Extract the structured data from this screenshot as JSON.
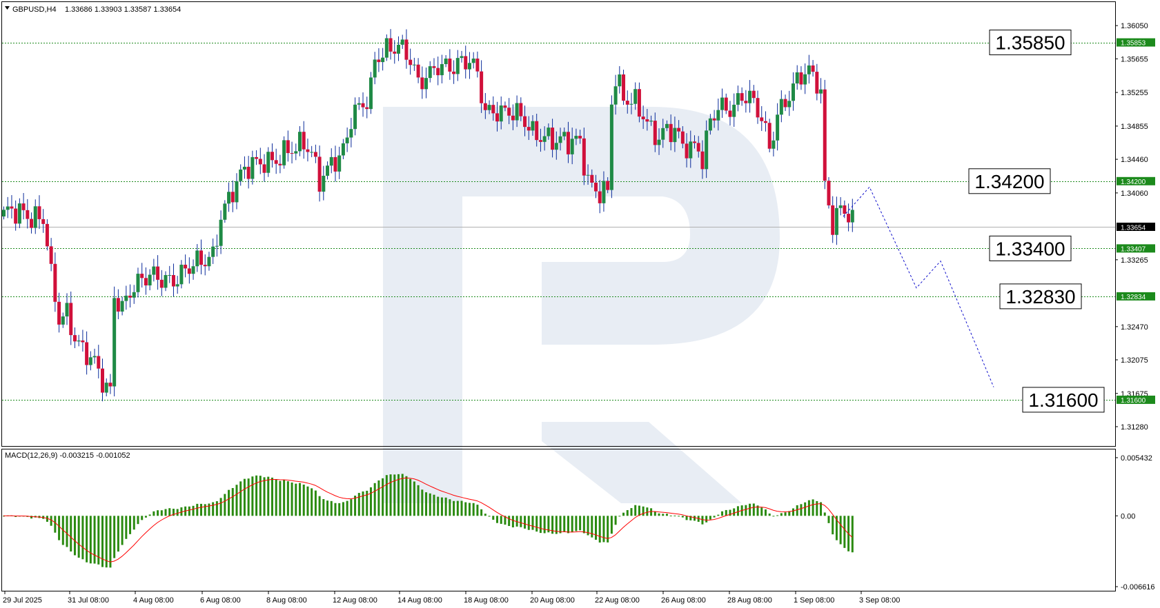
{
  "header": {
    "symbol": "GBPUSD,H4",
    "ohlc": "1.33686 1.33903 1.33587 1.33654"
  },
  "macd": {
    "label": "MACD(12,26,9) -0.003215 -0.001052",
    "ticks": [
      {
        "value": 0.005432,
        "label": "0.005432"
      },
      {
        "value": 0.0,
        "label": "0.00"
      },
      {
        "value": -0.006616,
        "label": "-0.006616"
      }
    ]
  },
  "colors": {
    "bull": "#1f8a45",
    "bear": "#d0103a",
    "level": "#1c8a1c",
    "signal": "#ff0000",
    "histogram": "#2a8a10",
    "forecast": "#1010cc",
    "current": "#b0b0b0",
    "watermark": "#e8edf4"
  },
  "chart_data": {
    "type": "candlestick",
    "ylim": [
      1.3105,
      1.3633
    ],
    "price_ticks": [
      1.3605,
      1.35655,
      1.35255,
      1.34855,
      1.3446,
      1.3406,
      1.33265,
      1.3247,
      1.32075,
      1.31675,
      1.3128
    ],
    "price_tick_labels": [
      "1.36050",
      "1.35655",
      "1.35255",
      "1.34855",
      "1.34460",
      "1.34060",
      "1.33265",
      "1.32470",
      "1.32075",
      "1.31675",
      "1.31280"
    ],
    "x_labels": [
      "29 Jul 2025",
      "31 Jul 08:00",
      "4 Aug 08:00",
      "6 Aug 08:00",
      "8 Aug 08:00",
      "12 Aug 08:00",
      "14 Aug 08:00",
      "18 Aug 08:00",
      "20 Aug 08:00",
      "22 Aug 08:00",
      "26 Aug 08:00",
      "28 Aug 08:00",
      "1 Sep 08:00",
      "3 Sep 08:00"
    ],
    "current_price": {
      "value": 1.33654,
      "label": "1.33654"
    },
    "levels": [
      {
        "value": 1.3585,
        "label": "1.35850",
        "badge": "1.35853"
      },
      {
        "value": 1.342,
        "label": "1.34200",
        "badge": "1.34200"
      },
      {
        "value": 1.334,
        "label": "1.33400",
        "badge": "1.33407"
      },
      {
        "value": 1.3283,
        "label": "1.32830",
        "badge": "1.32834"
      },
      {
        "value": 1.316,
        "label": "1.31600",
        "badge": "1.31600"
      }
    ],
    "forecast_path": [
      1.3378,
      1.3413,
      1.3293,
      1.3325,
      1.3175
    ],
    "candles": [],
    "macd_hist": [],
    "macd_signal": []
  }
}
